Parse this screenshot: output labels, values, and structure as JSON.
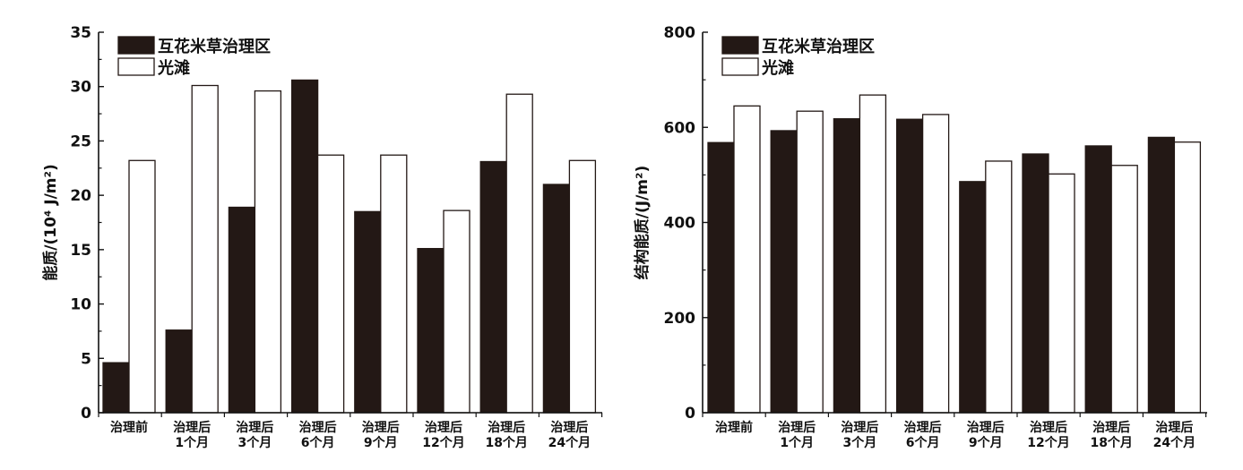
{
  "chart_data": [
    {
      "type": "bar",
      "ylabel": "能质/(10⁴ J/m²)",
      "ylim": [
        0,
        35
      ],
      "yticks": [
        0,
        5,
        10,
        15,
        20,
        25,
        30,
        35
      ],
      "categories": [
        {
          "line1": "治理前",
          "line2": ""
        },
        {
          "line1": "治理后",
          "line2": "1个月"
        },
        {
          "line1": "治理后",
          "line2": "3个月"
        },
        {
          "line1": "治理后",
          "line2": "6个月"
        },
        {
          "line1": "治理后",
          "line2": "9个月"
        },
        {
          "line1": "治理后",
          "line2": "12个月"
        },
        {
          "line1": "治理后",
          "line2": "18个月"
        },
        {
          "line1": "治理后",
          "line2": "24个月"
        }
      ],
      "legend_position": "top-left",
      "series": [
        {
          "name": "互花米草治理区",
          "color": "#231815",
          "values": [
            4.6,
            7.6,
            18.9,
            30.6,
            18.5,
            15.1,
            23.1,
            21.0
          ]
        },
        {
          "name": "光滩",
          "color": "#ffffff",
          "values": [
            23.2,
            30.1,
            29.6,
            23.7,
            23.7,
            18.6,
            29.3,
            23.2
          ]
        }
      ]
    },
    {
      "type": "bar",
      "ylabel": "结构能质/(J/m²)",
      "ylim": [
        0,
        800
      ],
      "yticks": [
        0,
        200,
        400,
        600,
        800
      ],
      "categories": [
        {
          "line1": "治理前",
          "line2": ""
        },
        {
          "line1": "治理后",
          "line2": "1个月"
        },
        {
          "line1": "治理后",
          "line2": "3个月"
        },
        {
          "line1": "治理后",
          "line2": "6个月"
        },
        {
          "line1": "治理后",
          "line2": "9个月"
        },
        {
          "line1": "治理后",
          "line2": "12个月"
        },
        {
          "line1": "治理后",
          "line2": "18个月"
        },
        {
          "line1": "治理后",
          "line2": "24个月"
        }
      ],
      "legend_position": "top-left",
      "series": [
        {
          "name": "互花米草治理区",
          "color": "#231815",
          "values": [
            568,
            593,
            618,
            617,
            486,
            544,
            561,
            579
          ]
        },
        {
          "name": "光滩",
          "color": "#ffffff",
          "values": [
            645,
            634,
            668,
            627,
            529,
            502,
            520,
            569
          ]
        }
      ]
    }
  ]
}
